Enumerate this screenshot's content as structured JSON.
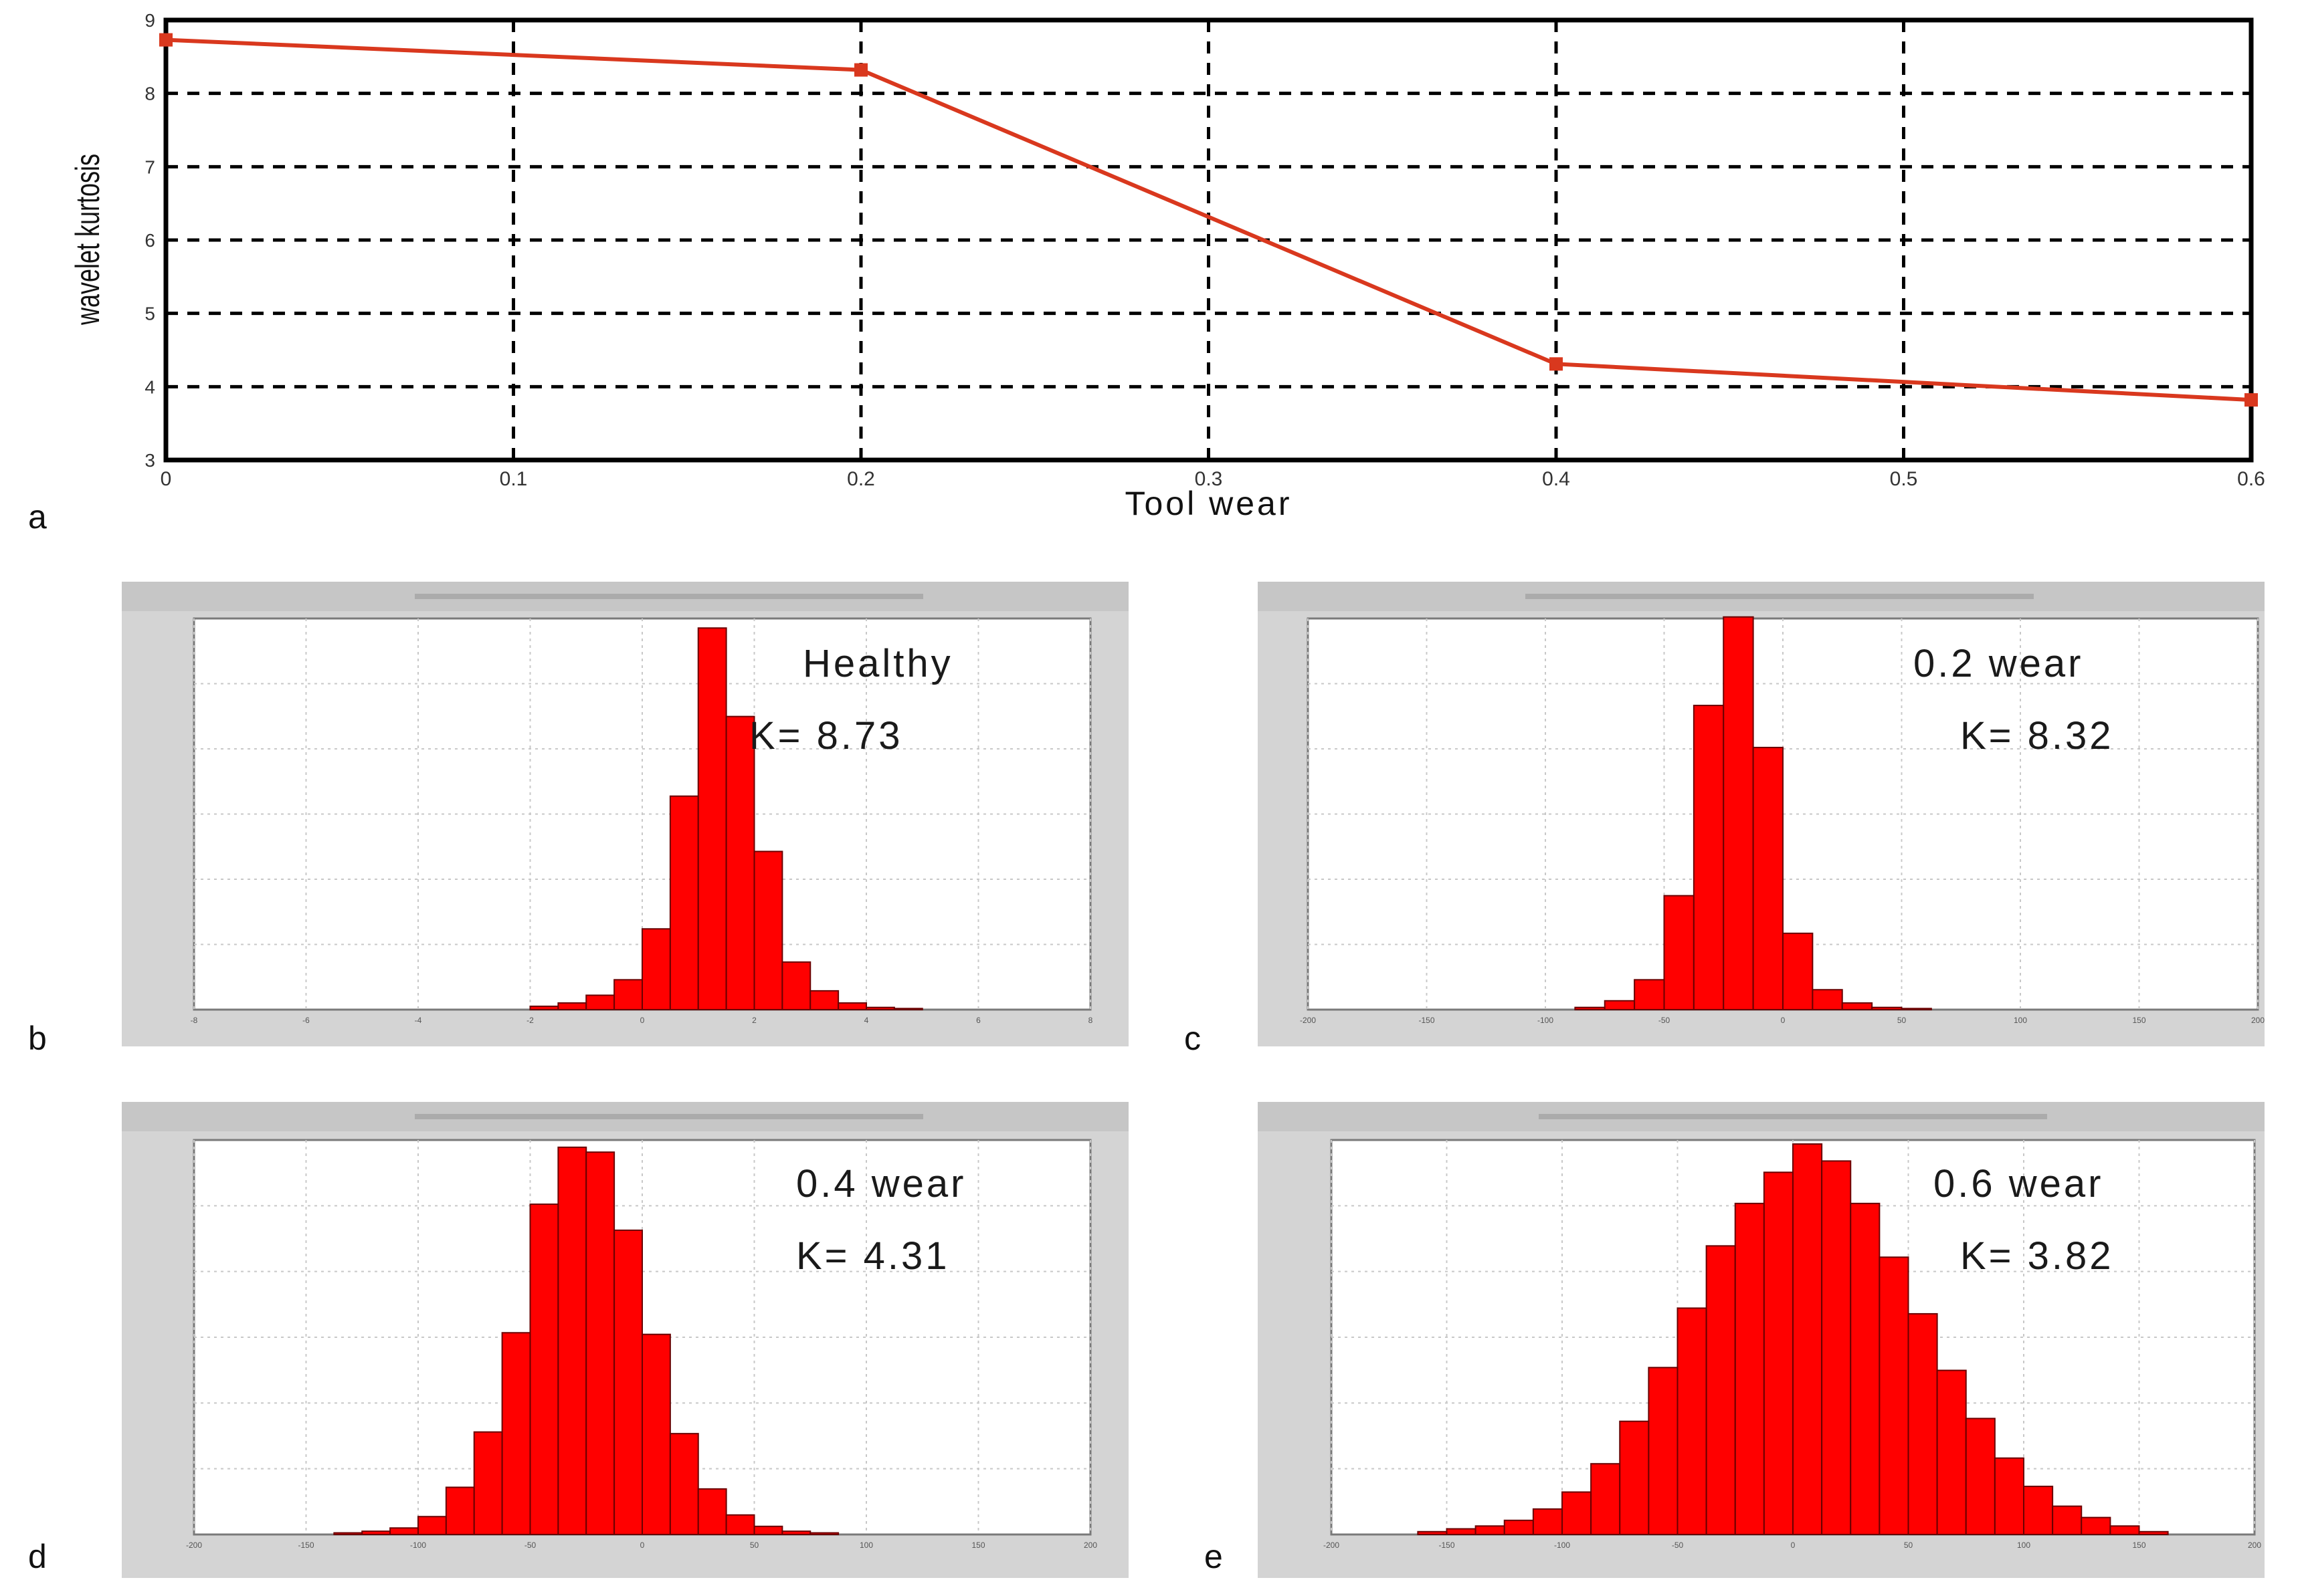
{
  "panel_letters": [
    "a",
    "b",
    "c",
    "d",
    "e"
  ],
  "chart_data": [
    {
      "type": "line",
      "panel": "a",
      "xlabel": "Tool wear",
      "ylabel": "wavelet kurtosis",
      "xlim": [
        0,
        0.6
      ],
      "ylim": [
        3,
        9
      ],
      "x_ticks": [
        "0",
        "0.1",
        "0.2",
        "0.3",
        "0.4",
        "0.5",
        "0.6"
      ],
      "y_ticks": [
        "3",
        "4",
        "5",
        "6",
        "7",
        "8",
        "9"
      ],
      "x": [
        0,
        0.2,
        0.4,
        0.6
      ],
      "y": [
        8.73,
        8.32,
        4.31,
        3.82
      ],
      "grid": true,
      "color": "#d9381e"
    },
    {
      "type": "bar",
      "panel": "b",
      "label_line1": "Healthy",
      "label_line2": "K= 8.73",
      "xlim": [
        -8,
        8
      ],
      "x_ticks": [
        "-8",
        "-6",
        "-4",
        "-2",
        "0",
        "2",
        "4",
        "6",
        "8"
      ],
      "bin_start": -8,
      "bin_width": 0.5,
      "values": [
        0,
        0,
        0,
        0,
        0,
        0,
        0,
        0,
        0,
        0,
        0,
        0,
        0.003,
        0.006,
        0.013,
        0.027,
        0.073,
        0.193,
        0.345,
        0.265,
        0.143,
        0.043,
        0.017,
        0.006,
        0.002,
        0.001,
        0,
        0,
        0,
        0,
        0,
        0
      ],
      "ymax": 0.35,
      "color": "#ff0000"
    },
    {
      "type": "bar",
      "panel": "c",
      "label_line1": "0.2 wear",
      "label_line2": "K= 8.32",
      "xlim": [
        -200,
        200
      ],
      "x_ticks": [
        "-200",
        "-150",
        "-100",
        "-50",
        "0",
        "50",
        "100",
        "150",
        "200"
      ],
      "bin_start": -200,
      "bin_width": 12.5,
      "values": [
        0,
        0,
        0,
        0,
        0,
        0,
        0,
        0,
        0,
        0.002,
        0.008,
        0.027,
        0.103,
        0.275,
        0.355,
        0.237,
        0.069,
        0.018,
        0.006,
        0.002,
        0.001,
        0,
        0,
        0,
        0,
        0,
        0,
        0,
        0,
        0,
        0,
        0
      ],
      "ymax": 0.35,
      "color": "#ff0000"
    },
    {
      "type": "bar",
      "panel": "d",
      "label_line1": "0.4 wear",
      "label_line2": "K= 4.31",
      "xlim": [
        -200,
        200
      ],
      "x_ticks": [
        "-200",
        "-150",
        "-100",
        "-50",
        "0",
        "50",
        "100",
        "150",
        "200"
      ],
      "bin_start": -200,
      "bin_width": 12.5,
      "values": [
        0,
        0,
        0,
        0,
        0,
        0.001,
        0.002,
        0.004,
        0.011,
        0.029,
        0.063,
        0.124,
        0.203,
        0.238,
        0.235,
        0.187,
        0.123,
        0.062,
        0.028,
        0.012,
        0.005,
        0.002,
        0.001,
        0,
        0,
        0,
        0,
        0,
        0,
        0,
        0,
        0
      ],
      "ymax": 0.24,
      "color": "#ff0000"
    },
    {
      "type": "bar",
      "panel": "e",
      "label_line1": "0.6 wear",
      "label_line2": "K= 3.82",
      "xlim": [
        -200,
        200
      ],
      "x_ticks": [
        "-200",
        "-150",
        "-100",
        "-50",
        "0",
        "50",
        "100",
        "150",
        "200"
      ],
      "bin_start": -200,
      "bin_width": 12.5,
      "values": [
        0,
        0,
        0,
        0.001,
        0.002,
        0.003,
        0.005,
        0.009,
        0.015,
        0.025,
        0.04,
        0.059,
        0.08,
        0.102,
        0.117,
        0.128,
        0.138,
        0.132,
        0.117,
        0.098,
        0.078,
        0.058,
        0.041,
        0.027,
        0.017,
        0.01,
        0.006,
        0.003,
        0.001,
        0,
        0,
        0
      ],
      "ymax": 0.138,
      "color": "#ff0000"
    }
  ]
}
